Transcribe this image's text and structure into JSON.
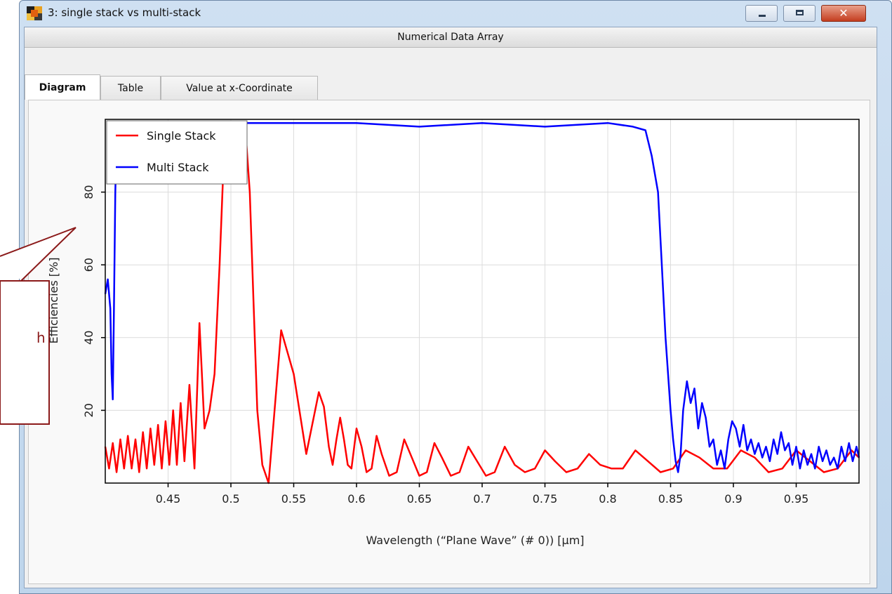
{
  "window": {
    "title": "3: single stack vs multi-stack",
    "header": "Numerical Data Array",
    "controls": {
      "minimize": "minimize",
      "maximize": "maximize",
      "close": "✕"
    }
  },
  "tabs": [
    {
      "label": "Diagram",
      "active": true
    },
    {
      "label": "Table",
      "active": false
    },
    {
      "label": "Value at x-Coordinate",
      "active": false
    }
  ],
  "callout": {
    "visible_text": "h"
  },
  "colors": {
    "single": "#ff0000",
    "multi": "#0000ff",
    "callout": "#8b1a1a"
  },
  "chart_data": {
    "type": "line",
    "xlabel": "Wavelength (“Plane Wave” (# 0)) [µm]",
    "ylabel": "Efficiencies  [%]",
    "xlim": [
      0.4,
      1.0
    ],
    "ylim": [
      0,
      100
    ],
    "xticks": [
      0.45,
      0.5,
      0.55,
      0.6,
      0.65,
      0.7,
      0.75,
      0.8,
      0.85,
      0.9,
      0.95
    ],
    "xtick_labels": [
      "0.45",
      "0.5",
      "0.55",
      "0.6",
      "0.65",
      "0.7",
      "0.75",
      "0.8",
      "0.85",
      "0.9",
      "0.95"
    ],
    "yticks": [
      20,
      40,
      60,
      80
    ],
    "ytick_labels": [
      "20",
      "40",
      "60",
      "80"
    ],
    "grid": true,
    "legend": "top-left",
    "series": [
      {
        "name": "Single Stack",
        "color": "#ff0000",
        "x": [
          0.4,
          0.403,
          0.406,
          0.409,
          0.412,
          0.415,
          0.418,
          0.421,
          0.424,
          0.427,
          0.43,
          0.433,
          0.436,
          0.439,
          0.442,
          0.445,
          0.448,
          0.451,
          0.454,
          0.457,
          0.46,
          0.463,
          0.467,
          0.471,
          0.475,
          0.479,
          0.483,
          0.487,
          0.491,
          0.495,
          0.499,
          0.503,
          0.506,
          0.509,
          0.512,
          0.515,
          0.518,
          0.521,
          0.525,
          0.53,
          0.54,
          0.55,
          0.56,
          0.57,
          0.574,
          0.578,
          0.581,
          0.584,
          0.587,
          0.59,
          0.593,
          0.596,
          0.6,
          0.604,
          0.608,
          0.612,
          0.616,
          0.62,
          0.626,
          0.632,
          0.638,
          0.644,
          0.65,
          0.656,
          0.662,
          0.668,
          0.675,
          0.682,
          0.689,
          0.696,
          0.703,
          0.71,
          0.718,
          0.726,
          0.734,
          0.742,
          0.75,
          0.758,
          0.767,
          0.776,
          0.785,
          0.794,
          0.803,
          0.812,
          0.822,
          0.832,
          0.842,
          0.852,
          0.862,
          0.873,
          0.884,
          0.895,
          0.906,
          0.917,
          0.928,
          0.939,
          0.95,
          0.961,
          0.972,
          0.983,
          0.994,
          1.0
        ],
        "y": [
          10,
          4,
          11,
          3,
          12,
          4,
          13,
          4,
          12,
          3,
          14,
          4,
          15,
          5,
          16,
          4,
          17,
          5,
          20,
          5,
          22,
          6,
          27,
          4,
          44,
          15,
          20,
          30,
          60,
          95,
          99,
          99,
          99,
          99,
          95,
          80,
          50,
          20,
          5,
          0,
          42,
          30,
          8,
          25,
          21,
          10,
          5,
          12,
          18,
          12,
          5,
          4,
          15,
          10,
          3,
          4,
          13,
          8,
          2,
          3,
          12,
          7,
          2,
          3,
          11,
          7,
          2,
          3,
          10,
          6,
          2,
          3,
          10,
          5,
          3,
          4,
          9,
          6,
          3,
          4,
          8,
          5,
          4,
          4,
          9,
          6,
          3,
          4,
          9,
          7,
          4,
          4,
          9,
          7,
          3,
          4,
          9,
          6,
          3,
          4,
          9,
          7
        ]
      },
      {
        "name": "Multi Stack",
        "color": "#0000ff",
        "x": [
          0.4,
          0.402,
          0.404,
          0.405,
          0.406,
          0.407,
          0.408,
          0.409,
          0.41,
          0.42,
          0.45,
          0.5,
          0.55,
          0.6,
          0.65,
          0.7,
          0.75,
          0.8,
          0.82,
          0.83,
          0.835,
          0.84,
          0.843,
          0.846,
          0.848,
          0.85,
          0.852,
          0.854,
          0.856,
          0.858,
          0.86,
          0.863,
          0.866,
          0.869,
          0.872,
          0.875,
          0.878,
          0.881,
          0.884,
          0.887,
          0.89,
          0.893,
          0.896,
          0.899,
          0.902,
          0.905,
          0.908,
          0.911,
          0.914,
          0.917,
          0.92,
          0.923,
          0.926,
          0.929,
          0.932,
          0.935,
          0.938,
          0.941,
          0.944,
          0.947,
          0.95,
          0.953,
          0.956,
          0.959,
          0.962,
          0.965,
          0.968,
          0.971,
          0.974,
          0.977,
          0.98,
          0.983,
          0.986,
          0.989,
          0.992,
          0.995,
          0.998,
          1.0
        ],
        "y": [
          52,
          56,
          48,
          30,
          23,
          50,
          80,
          95,
          99,
          99,
          99,
          99,
          99,
          99,
          98,
          99,
          98,
          99,
          98,
          97,
          90,
          80,
          60,
          40,
          30,
          20,
          12,
          6,
          3,
          8,
          20,
          28,
          22,
          26,
          15,
          22,
          18,
          10,
          12,
          5,
          9,
          4,
          12,
          17,
          15,
          10,
          16,
          9,
          12,
          8,
          11,
          7,
          10,
          6,
          12,
          8,
          14,
          9,
          11,
          5,
          10,
          4,
          9,
          5,
          8,
          4,
          10,
          6,
          9,
          5,
          7,
          4,
          10,
          6,
          11,
          6,
          10,
          7
        ]
      }
    ]
  }
}
